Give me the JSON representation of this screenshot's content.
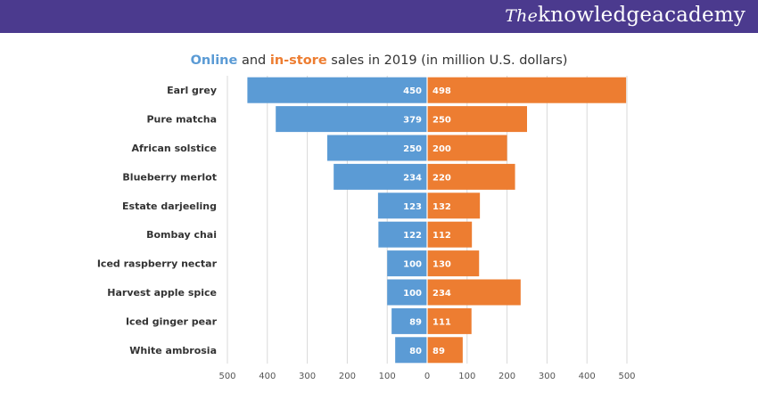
{
  "header": {
    "brand_prefix": "The",
    "brand_name": "knowledgeacademy",
    "bar_color": "#4b3a8e"
  },
  "chart_data": {
    "type": "bar",
    "orientation": "horizontal-diverging",
    "title_parts": {
      "series_a": "Online",
      "joiner": " and ",
      "series_b": "in-store",
      "rest": " sales in 2019 (in million U.S. dollars)"
    },
    "categories": [
      "Earl grey",
      "Pure matcha",
      "African solstice",
      "Blueberry merlot",
      "Estate darjeeling",
      "Bombay chai",
      "Iced raspberry nectar",
      "Harvest apple spice",
      "Iced ginger pear",
      "White ambrosia"
    ],
    "series": [
      {
        "name": "Online",
        "color": "#5b9bd5",
        "values": [
          450,
          379,
          250,
          234,
          123,
          122,
          100,
          100,
          89,
          80
        ]
      },
      {
        "name": "in-store",
        "color": "#ed7d31",
        "values": [
          498,
          250,
          200,
          220,
          132,
          112,
          130,
          234,
          111,
          89
        ]
      }
    ],
    "x_ticks": [
      "500",
      "400",
      "300",
      "200",
      "100",
      "0",
      "100",
      "200",
      "300",
      "400",
      "500"
    ],
    "xlim": [
      -500,
      500
    ],
    "grid": true,
    "legend": "none (series named in title)"
  }
}
